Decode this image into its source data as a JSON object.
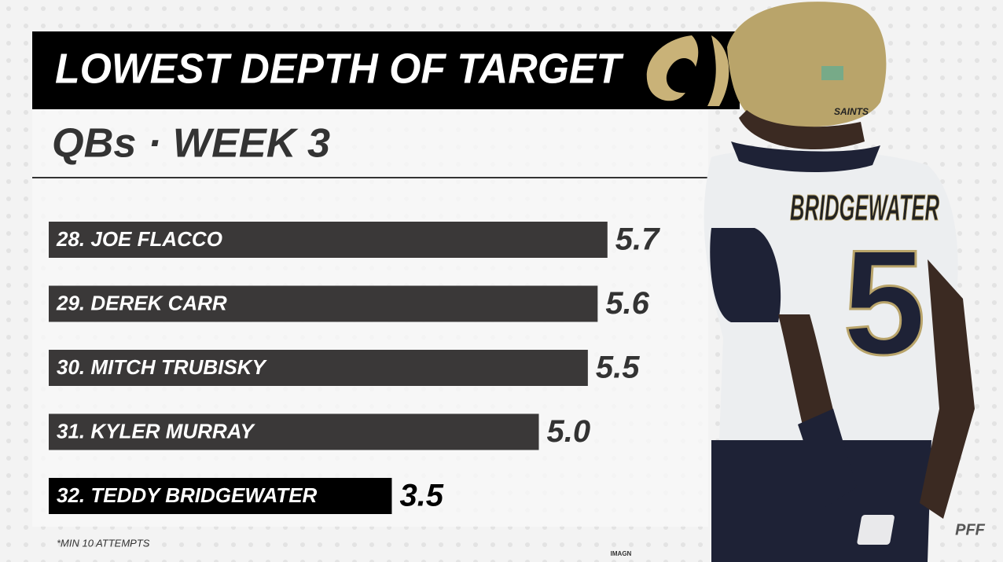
{
  "chart_data": {
    "type": "bar",
    "orientation": "horizontal",
    "title": "LOWEST DEPTH OF TARGET",
    "subtitle": "QBs · WEEK 3",
    "categories": [
      "28. JOE FLACCO",
      "29. DEREK CARR",
      "30. MITCH TRUBISKY",
      "31. KYLER MURRAY",
      "32. TEDDY BRIDGEWATER"
    ],
    "values": [
      5.7,
      5.6,
      5.5,
      5.0,
      3.5
    ],
    "value_labels": [
      "5.7",
      "5.6",
      "5.5",
      "5.0",
      "3.5"
    ],
    "colors": [
      "#3a3838",
      "#3a3838",
      "#3a3838",
      "#3a3838",
      "#000000"
    ],
    "value_label_colors": [
      "#333333",
      "#333333",
      "#333333",
      "#333333",
      "#000000"
    ],
    "footnote": "*MIN 10 ATTEMPTS",
    "photo_credit": "IMAGN",
    "logo": "PFF",
    "photo": {
      "jersey_name": "BRIDGEWATER",
      "jersey_number": "5",
      "helmet_text": "SAINTS"
    }
  }
}
